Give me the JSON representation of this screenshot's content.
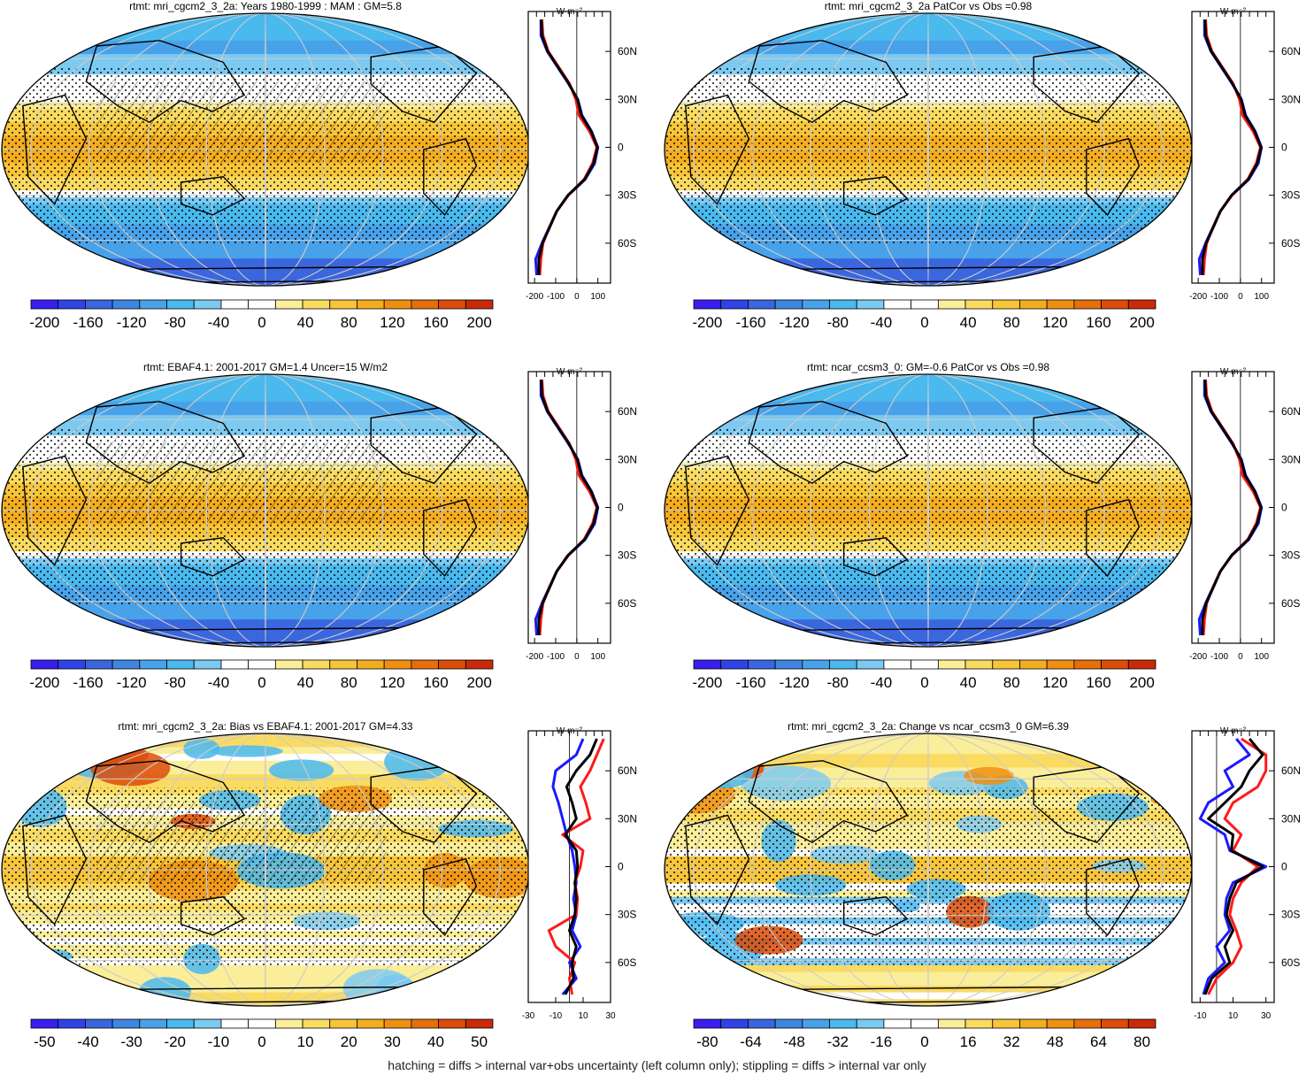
{
  "footnote": "hatching = diffs > internal var+obs uncertainty (left column only); stippling = diffs > internal var only",
  "colors": {
    "palette": [
      "#3a1ef0",
      "#2f43e6",
      "#3a66de",
      "#3f86e0",
      "#48a2ea",
      "#4ab9ee",
      "#7ccaf2",
      "#ffffff",
      "#ffffff",
      "#fbee9a",
      "#fadb62",
      "#f7c53a",
      "#f3ad20",
      "#ee8f12",
      "#e66f0c",
      "#dc4c0a",
      "#c92a0a"
    ],
    "line_blue": "#1a1aff",
    "line_red": "#ff1a1a",
    "line_black": "#000000",
    "grid": "#cccccc"
  },
  "unit_label": "W m⁻²",
  "chart_data": [
    {
      "type": "heatmap",
      "panel": "top-left",
      "title": "rtmt: mri_cgcm2_3_2a: Years 1980-1999 : MAM : GM=5.8",
      "pattern": "mean",
      "colorbar_ticks": [
        "-200",
        "-160",
        "-120",
        "-80",
        "-40",
        "0",
        "40",
        "80",
        "120",
        "160",
        "200"
      ],
      "profile": {
        "type": "line",
        "xticks": [
          "-200",
          "-100",
          "0",
          "100"
        ],
        "xlim": [
          -230,
          160
        ],
        "yticks": [
          "60N",
          "30N",
          "0",
          "30S",
          "60S"
        ],
        "lat": [
          -80,
          -70,
          -60,
          -50,
          -40,
          -30,
          -20,
          -10,
          0,
          10,
          20,
          30,
          40,
          50,
          60,
          70,
          80
        ],
        "series": [
          {
            "color": "blue",
            "values": [
              -190,
              -195,
              -165,
              -130,
              -95,
              -40,
              40,
              85,
              100,
              70,
              25,
              5,
              -40,
              -90,
              -140,
              -170,
              -170
            ]
          },
          {
            "color": "red",
            "values": [
              -175,
              -170,
              -160,
              -130,
              -95,
              -40,
              35,
              75,
              95,
              60,
              10,
              -5,
              -35,
              -85,
              -135,
              -160,
              -165
            ]
          },
          {
            "color": "black",
            "values": [
              -180,
              -180,
              -163,
              -128,
              -95,
              -42,
              38,
              80,
              98,
              68,
              22,
              3,
              -38,
              -88,
              -138,
              -165,
              -168
            ]
          }
        ]
      }
    },
    {
      "type": "heatmap",
      "panel": "top-right",
      "title": "rtmt: mri_cgcm2_3_2a PatCor vs Obs =0.98",
      "pattern": "mean",
      "colorbar_ticks": [
        "-200",
        "-160",
        "-120",
        "-80",
        "-40",
        "0",
        "40",
        "80",
        "120",
        "160",
        "200"
      ],
      "profile": {
        "type": "line",
        "xticks": [
          "-200",
          "-100",
          "0",
          "100"
        ],
        "xlim": [
          -230,
          160
        ],
        "yticks": [
          "60N",
          "30N",
          "0",
          "30S",
          "60S"
        ],
        "lat": [
          -80,
          -70,
          -60,
          -50,
          -40,
          -30,
          -20,
          -10,
          0,
          10,
          20,
          30,
          40,
          50,
          60,
          70,
          80
        ],
        "series": [
          {
            "color": "blue",
            "values": [
              -190,
              -195,
              -165,
              -130,
              -95,
              -40,
              40,
              85,
              100,
              70,
              25,
              5,
              -40,
              -90,
              -140,
              -170,
              -170
            ]
          },
          {
            "color": "red",
            "values": [
              -175,
              -170,
              -160,
              -130,
              -95,
              -40,
              35,
              75,
              95,
              60,
              10,
              -5,
              -35,
              -85,
              -135,
              -160,
              -165
            ]
          },
          {
            "color": "black",
            "values": [
              -180,
              -180,
              -163,
              -128,
              -95,
              -42,
              38,
              80,
              98,
              68,
              22,
              3,
              -38,
              -88,
              -138,
              -165,
              -168
            ]
          }
        ]
      }
    },
    {
      "type": "heatmap",
      "panel": "middle-left",
      "title": "rtmt: EBAF4.1: 2001-2017 GM=1.4 Uncer=15 W/m2",
      "pattern": "mean",
      "colorbar_ticks": [
        "-200",
        "-160",
        "-120",
        "-80",
        "-40",
        "0",
        "40",
        "80",
        "120",
        "160",
        "200"
      ],
      "profile": {
        "type": "line",
        "xticks": [
          "-200",
          "-100",
          "0",
          "100"
        ],
        "xlim": [
          -230,
          160
        ],
        "yticks": [
          "60N",
          "30N",
          "0",
          "30S",
          "60S"
        ],
        "lat": [
          -80,
          -70,
          -60,
          -50,
          -40,
          -30,
          -20,
          -10,
          0,
          10,
          20,
          30,
          40,
          50,
          60,
          70,
          80
        ],
        "series": [
          {
            "color": "blue",
            "values": [
              -190,
              -195,
              -165,
              -130,
              -95,
              -40,
              40,
              85,
              100,
              70,
              25,
              5,
              -40,
              -90,
              -140,
              -170,
              -170
            ]
          },
          {
            "color": "red",
            "values": [
              -175,
              -170,
              -160,
              -130,
              -95,
              -40,
              35,
              75,
              95,
              60,
              10,
              -5,
              -35,
              -85,
              -135,
              -160,
              -165
            ]
          },
          {
            "color": "black",
            "values": [
              -180,
              -180,
              -163,
              -128,
              -95,
              -42,
              38,
              80,
              98,
              68,
              22,
              3,
              -38,
              -88,
              -138,
              -165,
              -168
            ]
          }
        ]
      }
    },
    {
      "type": "heatmap",
      "panel": "middle-right",
      "title": "rtmt: ncar_ccsm3_0: GM=-0.6 PatCor vs Obs =0.98",
      "pattern": "mean",
      "colorbar_ticks": [
        "-200",
        "-160",
        "-120",
        "-80",
        "-40",
        "0",
        "40",
        "80",
        "120",
        "160",
        "200"
      ],
      "profile": {
        "type": "line",
        "xticks": [
          "-200",
          "-100",
          "0",
          "100"
        ],
        "xlim": [
          -230,
          160
        ],
        "yticks": [
          "60N",
          "30N",
          "0",
          "30S",
          "60S"
        ],
        "lat": [
          -80,
          -70,
          -60,
          -50,
          -40,
          -30,
          -20,
          -10,
          0,
          10,
          20,
          30,
          40,
          50,
          60,
          70,
          80
        ],
        "series": [
          {
            "color": "blue",
            "values": [
              -190,
              -195,
              -165,
              -130,
              -95,
              -40,
              40,
              85,
              100,
              70,
              25,
              5,
              -40,
              -90,
              -140,
              -170,
              -170
            ]
          },
          {
            "color": "red",
            "values": [
              -175,
              -170,
              -160,
              -130,
              -95,
              -40,
              35,
              75,
              95,
              60,
              10,
              -5,
              -35,
              -85,
              -135,
              -160,
              -165
            ]
          },
          {
            "color": "black",
            "values": [
              -180,
              -180,
              -163,
              -128,
              -95,
              -42,
              38,
              80,
              98,
              68,
              22,
              3,
              -38,
              -88,
              -138,
              -165,
              -168
            ]
          }
        ]
      }
    },
    {
      "type": "heatmap",
      "panel": "bottom-left",
      "title": "rtmt: mri_cgcm2_3_2a: Bias vs EBAF4.1: 2001-2017 GM=4.33",
      "pattern": "diff",
      "colorbar_ticks": [
        "-50",
        "-40",
        "-30",
        "-20",
        "-10",
        "0",
        "10",
        "20",
        "30",
        "40",
        "50"
      ],
      "profile": {
        "type": "line",
        "xticks": [
          "-30",
          "-10",
          "10",
          "30"
        ],
        "xlim": [
          -30,
          30
        ],
        "yticks": [
          "60N",
          "30N",
          "0",
          "30S",
          "60S"
        ],
        "lat": [
          -80,
          -70,
          -60,
          -50,
          -40,
          -30,
          -20,
          -10,
          0,
          10,
          20,
          30,
          40,
          50,
          60,
          70,
          80
        ],
        "series": [
          {
            "color": "blue",
            "values": [
              -5,
              5,
              0,
              8,
              2,
              5,
              3,
              5,
              4,
              2,
              -2,
              -5,
              -8,
              -12,
              -10,
              5,
              10
            ]
          },
          {
            "color": "red",
            "values": [
              2,
              0,
              4,
              -10,
              -15,
              5,
              6,
              4,
              8,
              10,
              -5,
              15,
              12,
              8,
              15,
              20,
              25
            ]
          },
          {
            "color": "black",
            "values": [
              -3,
              3,
              2,
              5,
              0,
              4,
              5,
              4,
              6,
              5,
              -3,
              5,
              2,
              -2,
              5,
              15,
              20
            ]
          }
        ]
      }
    },
    {
      "type": "heatmap",
      "panel": "bottom-right",
      "title": "rtmt: mri_cgcm2_3_2a: Change vs ncar_ccsm3_0 GM=6.39",
      "pattern": "diff",
      "colorbar_ticks": [
        "-80",
        "-64",
        "-48",
        "-32",
        "-16",
        "0",
        "16",
        "32",
        "48",
        "64",
        "80"
      ],
      "profile": {
        "type": "line",
        "xticks": [
          "-10",
          "10",
          "30"
        ],
        "xlim": [
          -15,
          35
        ],
        "yticks": [
          "60N",
          "30N",
          "0",
          "30S",
          "60S"
        ],
        "lat": [
          -80,
          -70,
          -60,
          -50,
          -40,
          -30,
          -20,
          -10,
          0,
          10,
          20,
          30,
          40,
          50,
          60,
          70,
          80
        ],
        "series": [
          {
            "color": "blue",
            "values": [
              -8,
              -5,
              5,
              0,
              8,
              5,
              6,
              10,
              30,
              8,
              5,
              -10,
              -5,
              10,
              5,
              20,
              12
            ]
          },
          {
            "color": "red",
            "values": [
              -5,
              0,
              10,
              15,
              12,
              8,
              10,
              15,
              25,
              10,
              15,
              5,
              10,
              25,
              30,
              30,
              15
            ]
          },
          {
            "color": "black",
            "values": [
              -7,
              -3,
              8,
              5,
              10,
              6,
              8,
              12,
              28,
              9,
              10,
              -5,
              5,
              15,
              20,
              28,
              20
            ]
          }
        ]
      }
    }
  ]
}
